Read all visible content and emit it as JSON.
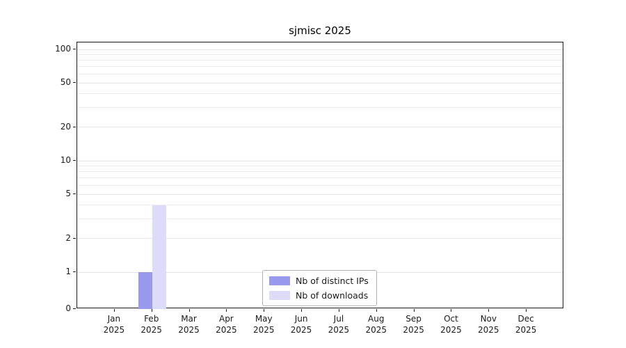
{
  "chart_data": {
    "type": "bar",
    "title": "sjmisc 2025",
    "year": "2025",
    "categories": [
      "Jan",
      "Feb",
      "Mar",
      "Apr",
      "May",
      "Jun",
      "Jul",
      "Aug",
      "Sep",
      "Oct",
      "Nov",
      "Dec"
    ],
    "series": [
      {
        "name": "Nb of distinct IPs",
        "color": "#9999ee",
        "values": [
          0,
          1,
          0,
          0,
          0,
          0,
          0,
          0,
          0,
          0,
          0,
          0
        ]
      },
      {
        "name": "Nb of downloads",
        "color": "#dcdcf8",
        "values": [
          0,
          4,
          0,
          0,
          0,
          0,
          0,
          0,
          0,
          0,
          0,
          0
        ]
      }
    ],
    "yticks": [
      0,
      1,
      2,
      5,
      10,
      20,
      50,
      100
    ],
    "ylim": [
      0,
      100
    ],
    "yscale": "symlog",
    "grid": "horizontal",
    "legend_position": "bottom-center"
  }
}
